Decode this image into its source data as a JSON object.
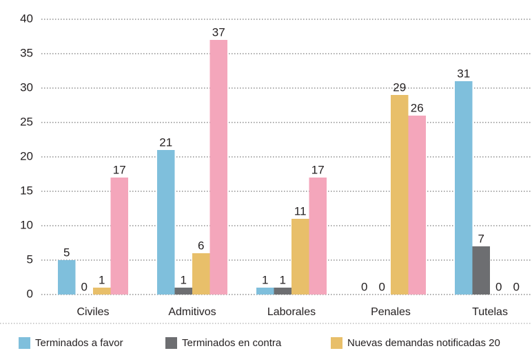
{
  "chart_data": {
    "type": "bar",
    "categories": [
      "Civiles",
      "Admitivos",
      "Laborales",
      "Penales",
      "Tutelas"
    ],
    "series": [
      {
        "name": "Terminados a favor",
        "color": "#7fbfdc",
        "values": [
          5,
          21,
          1,
          0,
          31
        ]
      },
      {
        "name": "Terminados en contra",
        "color": "#6d6e71",
        "values": [
          0,
          1,
          1,
          0,
          7
        ]
      },
      {
        "name": "Nuevas demandas notificadas 20",
        "color": "#e8bf6a",
        "values": [
          1,
          6,
          11,
          29,
          0
        ]
      },
      {
        "color": "#f4a6bb",
        "values": [
          17,
          37,
          17,
          26,
          0
        ]
      }
    ],
    "ylim": [
      0,
      40
    ],
    "yticks": [
      0,
      5,
      10,
      15,
      20,
      25,
      30,
      35,
      40
    ],
    "grid": true
  }
}
